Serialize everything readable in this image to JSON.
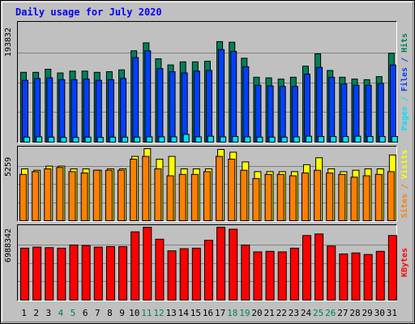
{
  "title": "Daily usage for July 2020",
  "colors": {
    "background": "#c0c0c0",
    "title": "#0000ff",
    "hits": "#00805c",
    "files": "#0040ff",
    "pages": "#00e0ff",
    "visits": "#ffff00",
    "sites": "#ff8000",
    "kbytes": "#ff0000",
    "weekend_label": "#00805c"
  },
  "chart_data": {
    "type": "bar",
    "title": "Daily usage for July 2020",
    "categories": [
      "1",
      "2",
      "3",
      "4",
      "5",
      "6",
      "7",
      "8",
      "9",
      "10",
      "11",
      "12",
      "13",
      "14",
      "15",
      "16",
      "17",
      "18",
      "19",
      "20",
      "21",
      "22",
      "23",
      "24",
      "25",
      "26",
      "27",
      "28",
      "29",
      "30",
      "31"
    ],
    "weekend_days": [
      "4",
      "5",
      "11",
      "12",
      "18",
      "19",
      "25",
      "26"
    ],
    "panels": [
      {
        "id": "top",
        "axis_max_label": "193832",
        "ymax": 193832,
        "legend": [
          "Pages",
          "Files",
          "Hits"
        ],
        "series": [
          {
            "name": "Hits",
            "values": [
              115000,
              115000,
              120000,
              114000,
              117000,
              117000,
              115000,
              116000,
              119000,
              150000,
              163000,
              137000,
              127000,
              132000,
              132000,
              133000,
              165000,
              164000,
              138000,
              107000,
              106000,
              104000,
              107000,
              125000,
              145000,
              118000,
              107000,
              104000,
              103000,
              108000,
              146000
            ]
          },
          {
            "name": "Files",
            "values": [
              102000,
              105000,
              106000,
              103000,
              103000,
              104000,
              102000,
              103000,
              105000,
              139000,
              150000,
              121000,
              116000,
              114000,
              117000,
              118000,
              152000,
              149000,
              124000,
              94000,
              93000,
              92000,
              92000,
              112000,
              123000,
              107000,
              96000,
              94000,
              94000,
              97000,
              127000
            ]
          },
          {
            "name": "Pages",
            "values": [
              9500,
              10000,
              9500,
              9000,
              9000,
              9500,
              9000,
              9500,
              9500,
              9500,
              10000,
              10000,
              10000,
              14000,
              10000,
              11000,
              10000,
              10500,
              10000,
              9500,
              9500,
              9500,
              10000,
              11000,
              10500,
              10500,
              10500,
              11000,
              10500,
              10500,
              10500
            ]
          }
        ]
      },
      {
        "id": "middle",
        "axis_max_label": "5259",
        "ymax": 5259,
        "legend": [
          "Sites",
          "/",
          "Visits"
        ],
        "series": [
          {
            "name": "Visits",
            "values": [
              3800,
              3700,
              4000,
              4000,
              3800,
              3800,
              3700,
              3800,
              3800,
              4700,
              5259,
              4500,
              4700,
              3800,
              3800,
              3800,
              5200,
              5000,
              4300,
              3600,
              3600,
              3600,
              3600,
              4100,
              4600,
              3800,
              3600,
              3700,
              3800,
              3800,
              4800
            ]
          },
          {
            "name": "Sites",
            "values": [
              3400,
              3600,
              3800,
              3900,
              3600,
              3500,
              3700,
              3700,
              3700,
              4500,
              4700,
              3800,
              3300,
              3400,
              3400,
              3600,
              4700,
              4500,
              3700,
              3100,
              3400,
              3400,
              3300,
              3500,
              3700,
              3500,
              3400,
              3200,
              3300,
              3400,
              3600
            ]
          }
        ]
      },
      {
        "id": "bottom",
        "axis_max_label": "6988342",
        "ymax": 6988342,
        "legend": [
          "KBytes"
        ],
        "series": [
          {
            "name": "KBytes",
            "values": [
              5000000,
              5100000,
              5050000,
              5000000,
              5300000,
              5250000,
              5100000,
              5150000,
              5150000,
              6550000,
              6988342,
              5850000,
              4750000,
              4950000,
              5000000,
              5750000,
              6988342,
              6800000,
              5300000,
              4650000,
              4700000,
              4650000,
              5000000,
              6200000,
              6350000,
              5200000,
              4450000,
              4550000,
              4400000,
              4700000,
              6200000
            ]
          }
        ]
      }
    ]
  }
}
